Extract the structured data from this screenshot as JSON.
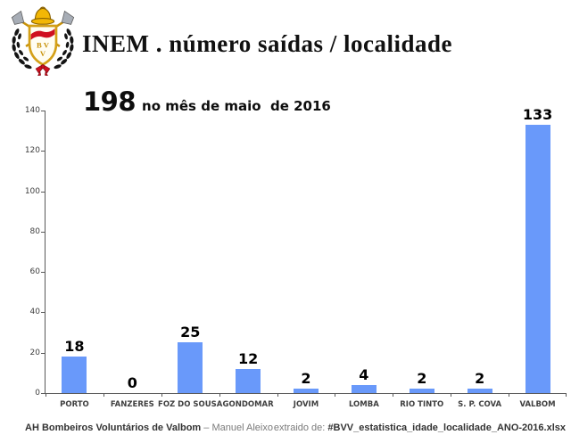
{
  "header": {
    "title": "INEM . número saídas / localidade",
    "logo": "bvv-crest"
  },
  "chart_heading": {
    "number": "198",
    "caption": "no mês de maio  de 2016"
  },
  "chart_data": {
    "type": "bar",
    "title": "198 no mês de maio de 2016",
    "categories": [
      "PORTO",
      "FANZERES",
      "FOZ DO SOUSA",
      "GONDOMAR",
      "JOVIM",
      "LOMBA",
      "RIO TINTO",
      "S. P. COVA",
      "VALBOM"
    ],
    "values": [
      18,
      0,
      25,
      12,
      2,
      4,
      2,
      2,
      133
    ],
    "total": 198,
    "xlabel": "",
    "ylabel": "",
    "ylim": [
      0,
      140
    ],
    "ytick_step": 20,
    "grid": false,
    "legend": "none",
    "data_labels": true,
    "bar_color": "#6999FA",
    "axis_color": "#595959"
  },
  "footer": {
    "left_bold": "AH Bombeiros Voluntários de Valbom",
    "left_rest": " – Manuel Aleixo",
    "right_label": "extraido de: ",
    "right_file": "#BVV_estatistica_idade_localidade_ANO-2016.xlsx"
  }
}
